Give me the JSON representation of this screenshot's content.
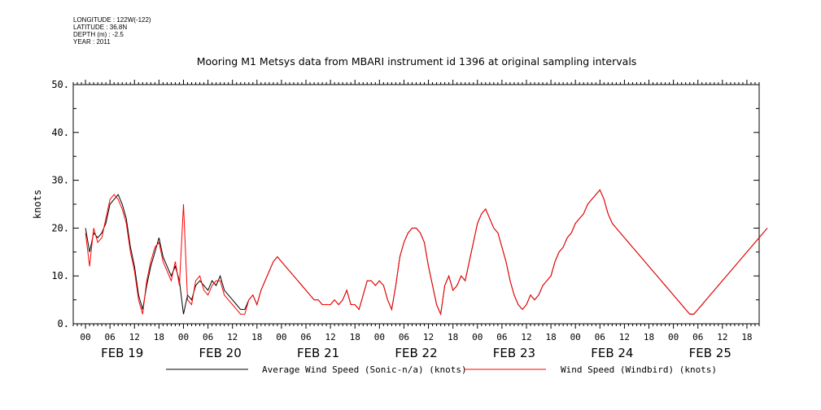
{
  "meta": {
    "longitude": "LONGITUDE : 122W(-122)",
    "latitude": "LATITUDE : 36.8N",
    "depth": "DEPTH (m) : -2.5",
    "year": "YEAR : 2011"
  },
  "chart_data": {
    "type": "line",
    "title": "Mooring M1 Metsys data from MBARI instrument id 1396 at original sampling intervals",
    "ylabel": "knots",
    "xlabel": "",
    "ylim": [
      0,
      50
    ],
    "yticks": [
      "0.",
      "10.",
      "20.",
      "30.",
      "40.",
      "50."
    ],
    "xlim_hours": [
      -3,
      165
    ],
    "hour_tick_labels": [
      "00",
      "06",
      "12",
      "18",
      "00",
      "06",
      "12",
      "18",
      "00",
      "06",
      "12",
      "18",
      "00",
      "06",
      "12",
      "18",
      "00",
      "06",
      "12",
      "18",
      "00",
      "06",
      "12",
      "18",
      "00",
      "06",
      "12",
      "18"
    ],
    "day_labels": [
      "FEB 19",
      "FEB 20",
      "FEB 21",
      "FEB 22",
      "FEB 23",
      "FEB 24",
      "FEB 25"
    ],
    "legend": "bottom",
    "series": [
      {
        "name": "Average Wind Speed (Sonic-n/a) (knots)",
        "color": "#000000",
        "x": [
          0,
          1,
          2,
          3,
          4,
          5,
          6,
          7,
          8,
          9,
          10,
          11,
          12,
          13,
          14,
          15,
          16,
          17,
          18,
          19,
          20,
          21,
          22,
          23,
          24,
          25,
          26,
          27,
          28,
          29,
          30,
          31,
          32,
          33,
          34,
          35,
          36,
          37,
          38,
          39,
          40,
          41,
          42,
          43,
          44,
          45,
          46,
          47,
          48,
          49,
          50,
          51,
          52,
          53,
          54,
          55,
          56,
          57,
          58,
          59,
          60,
          61,
          62,
          63,
          64,
          65,
          66,
          67,
          68,
          69,
          70,
          71,
          72,
          73,
          74,
          75,
          76,
          77,
          78,
          79,
          80,
          81,
          82,
          83,
          84,
          85,
          86,
          87,
          88,
          89,
          90,
          91,
          92,
          93,
          94,
          95,
          96,
          97,
          98,
          99,
          100,
          101,
          102,
          103,
          104,
          105,
          106,
          107,
          108,
          109,
          110,
          111,
          112,
          113,
          114,
          115,
          116,
          117,
          118,
          119,
          120,
          121,
          122,
          123,
          124,
          125,
          126,
          127,
          128,
          129,
          130,
          131,
          132,
          133,
          134,
          135,
          136,
          137,
          138,
          139,
          140,
          141,
          142,
          143,
          144,
          145,
          146,
          147,
          148,
          149,
          150,
          151,
          152,
          153,
          154,
          155,
          156,
          157,
          158,
          159,
          160,
          161,
          162,
          163,
          164,
          165,
          166,
          167
        ],
        "y": [
          20,
          15,
          19,
          18,
          19,
          21,
          25,
          26,
          27,
          25,
          22,
          16,
          12,
          6,
          3,
          8,
          12,
          15,
          18,
          14,
          12,
          10,
          12,
          9,
          2,
          6,
          5,
          8,
          9,
          8,
          7,
          9,
          8,
          10,
          7,
          6,
          5,
          4,
          3,
          3,
          5,
          6,
          4,
          7,
          9,
          11,
          13,
          14,
          13,
          12,
          11,
          10,
          9,
          8,
          7,
          6,
          5,
          5,
          4,
          4,
          4,
          5,
          4,
          5,
          7,
          4,
          4,
          3,
          6,
          9,
          9,
          8,
          9,
          8,
          5,
          3,
          8,
          14,
          17,
          19,
          20,
          20,
          19,
          17,
          12,
          8,
          4,
          2,
          8,
          10,
          7,
          8,
          10,
          9,
          13,
          17,
          21,
          23,
          24,
          22,
          20,
          19,
          16,
          13,
          9,
          6,
          4,
          3,
          4,
          6,
          5,
          6,
          8,
          9,
          10,
          13,
          15,
          16,
          18,
          19,
          21,
          22,
          23,
          25,
          26,
          27,
          28,
          26,
          23,
          21,
          20,
          19,
          18,
          17,
          16,
          15,
          14,
          13,
          12,
          11,
          10,
          9,
          8,
          7,
          6,
          5,
          4,
          3,
          2,
          2,
          3,
          4,
          5,
          6,
          7,
          8,
          9,
          10,
          11,
          12,
          13,
          14,
          15,
          16,
          17,
          18,
          19,
          20
        ]
      },
      {
        "name": "Wind Speed (Windbird) (knots)",
        "color": "#ff0000",
        "x": [
          0,
          1,
          2,
          3,
          4,
          5,
          6,
          7,
          8,
          9,
          10,
          11,
          12,
          13,
          14,
          15,
          16,
          17,
          18,
          19,
          20,
          21,
          22,
          23,
          24,
          25,
          26,
          27,
          28,
          29,
          30,
          31,
          32,
          33,
          34,
          35,
          36,
          37,
          38,
          39,
          40,
          41,
          42,
          43,
          44,
          45,
          46,
          47,
          48,
          49,
          50,
          51,
          52,
          53,
          54,
          55,
          56,
          57,
          58,
          59,
          60,
          61,
          62,
          63,
          64,
          65,
          66,
          67,
          68,
          69,
          70,
          71,
          72,
          73,
          74,
          75,
          76,
          77,
          78,
          79,
          80,
          81,
          82,
          83,
          84,
          85,
          86,
          87,
          88,
          89,
          90,
          91,
          92,
          93,
          94,
          95,
          96,
          97,
          98,
          99,
          100,
          101,
          102,
          103,
          104,
          105,
          106,
          107,
          108,
          109,
          110,
          111,
          112,
          113,
          114,
          115,
          116,
          117,
          118,
          119,
          120,
          121,
          122,
          123,
          124,
          125,
          126,
          127,
          128,
          129,
          130,
          131,
          132,
          133,
          134,
          135,
          136,
          137,
          138,
          139,
          140,
          141,
          142,
          143,
          144,
          145,
          146,
          147,
          148,
          149,
          150,
          151,
          152,
          153,
          154,
          155,
          156,
          157,
          158,
          159,
          160,
          161,
          162,
          163,
          164,
          165,
          166,
          167
        ],
        "y": [
          19,
          12,
          20,
          17,
          18,
          22,
          26,
          27,
          26,
          24,
          21,
          15,
          11,
          5,
          2,
          9,
          13,
          16,
          17,
          13,
          11,
          9,
          13,
          8,
          25,
          5,
          4,
          9,
          10,
          7,
          6,
          8,
          9,
          9,
          6,
          5,
          4,
          3,
          2,
          2,
          5,
          6,
          4,
          7,
          9,
          11,
          13,
          14,
          13,
          12,
          11,
          10,
          9,
          8,
          7,
          6,
          5,
          5,
          4,
          4,
          4,
          5,
          4,
          5,
          7,
          4,
          4,
          3,
          6,
          9,
          9,
          8,
          9,
          8,
          5,
          3,
          8,
          14,
          17,
          19,
          20,
          20,
          19,
          17,
          12,
          8,
          4,
          2,
          8,
          10,
          7,
          8,
          10,
          9,
          13,
          17,
          21,
          23,
          24,
          22,
          20,
          19,
          16,
          13,
          9,
          6,
          4,
          3,
          4,
          6,
          5,
          6,
          8,
          9,
          10,
          13,
          15,
          16,
          18,
          19,
          21,
          22,
          23,
          25,
          26,
          27,
          28,
          26,
          23,
          21,
          20,
          19,
          18,
          17,
          16,
          15,
          14,
          13,
          12,
          11,
          10,
          9,
          8,
          7,
          6,
          5,
          4,
          3,
          2,
          2,
          3,
          4,
          5,
          6,
          7,
          8,
          9,
          10,
          11,
          12,
          13,
          14,
          15,
          16,
          17,
          18,
          19,
          20
        ]
      }
    ]
  }
}
